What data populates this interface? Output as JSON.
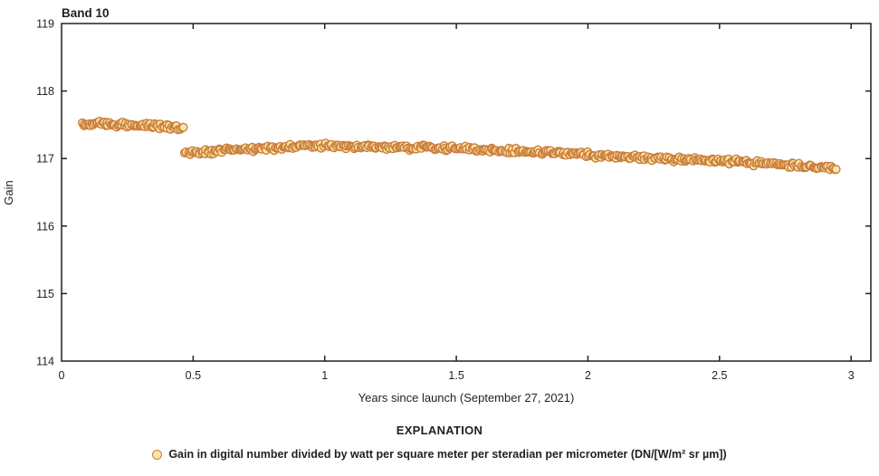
{
  "chart_data": {
    "type": "scatter",
    "title": "Band 10",
    "xlabel": "Years since launch (September 27, 2021)",
    "ylabel": "Gain",
    "xlim": [
      0,
      3.075
    ],
    "ylim": [
      114,
      119
    ],
    "xticks": [
      0,
      0.5,
      1,
      1.5,
      2,
      2.5,
      3
    ],
    "yticks": [
      114,
      115,
      116,
      117,
      118,
      119
    ],
    "grid": false,
    "frame": "box-with-inward-ticks",
    "legend_position": "below-chart",
    "series": [
      {
        "name": "Gain in digital number divided by watt per square meter per steradian per micrometer (DN/[W/m² sr µm])",
        "marker": {
          "shape": "circle",
          "fill": "#F9E5A7",
          "stroke": "#CB7E3C",
          "radius_px": 4.3,
          "stroke_width_px": 1.4
        },
        "description": "Dense near-daily gain measurements; step drop from ~117.5 to ~117.1 at ~0.46 years, slight rise to ~117.19 near 0.95 years, slow decline to ~116.86 at 2.94 years",
        "segments": [
          {
            "count": 75,
            "gain_jitter": 0.03,
            "anchors": [
              [
                0.08,
                117.52
              ],
              [
                0.2,
                117.51
              ],
              [
                0.32,
                117.49
              ],
              [
                0.46,
                117.46
              ]
            ]
          },
          {
            "count": 440,
            "gain_jitter": 0.025,
            "anchors": [
              [
                0.47,
                117.08
              ],
              [
                0.6,
                117.12
              ],
              [
                0.8,
                117.16
              ],
              [
                0.95,
                117.19
              ],
              [
                1.15,
                117.17
              ],
              [
                1.35,
                117.16
              ],
              [
                1.55,
                117.14
              ],
              [
                1.75,
                117.11
              ],
              [
                1.95,
                117.07
              ],
              [
                2.15,
                117.02
              ],
              [
                2.35,
                116.99
              ],
              [
                2.55,
                116.96
              ],
              [
                2.75,
                116.91
              ],
              [
                2.9,
                116.87
              ],
              [
                2.945,
                116.86
              ]
            ]
          }
        ]
      }
    ]
  },
  "legend": {
    "heading": "EXPLANATION",
    "items": [
      {
        "symbol": "circle-marker",
        "label": "Gain in digital number divided by watt per square meter per steradian per micrometer (DN/[W/m² sr µm])"
      }
    ]
  },
  "colors": {
    "axis": "#231f20",
    "text": "#231f20",
    "marker_fill": "#F9E5A7",
    "marker_stroke": "#CB7E3C",
    "background": "#ffffff"
  }
}
